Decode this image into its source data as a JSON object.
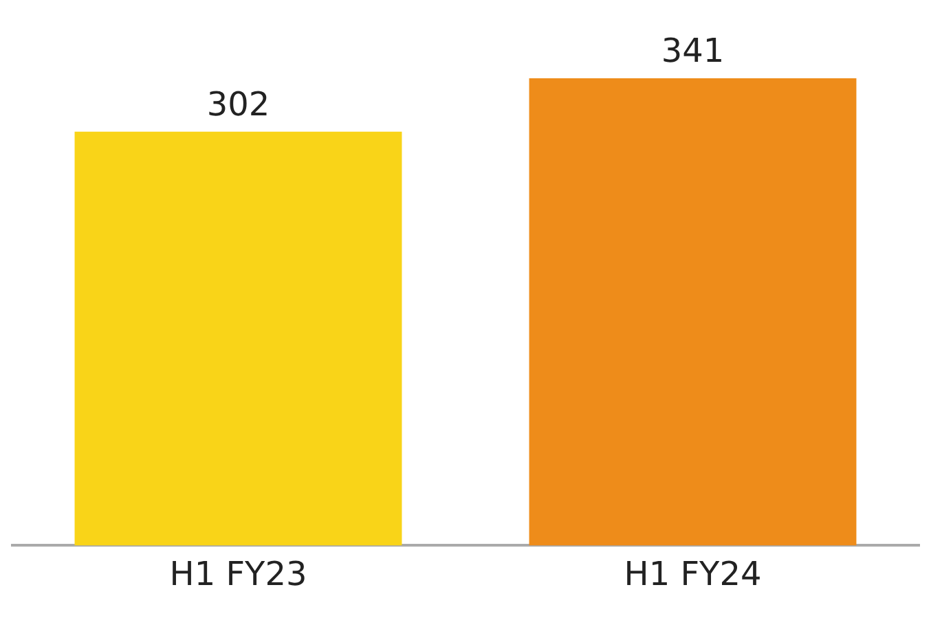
{
  "chart_data": {
    "type": "bar",
    "categories": [
      "H1 FY23",
      "H1 FY24"
    ],
    "values": [
      302,
      341
    ],
    "colors": [
      "#f9d418",
      "#ee8c1a"
    ],
    "data_labels": true,
    "grid": false,
    "legend": false
  }
}
